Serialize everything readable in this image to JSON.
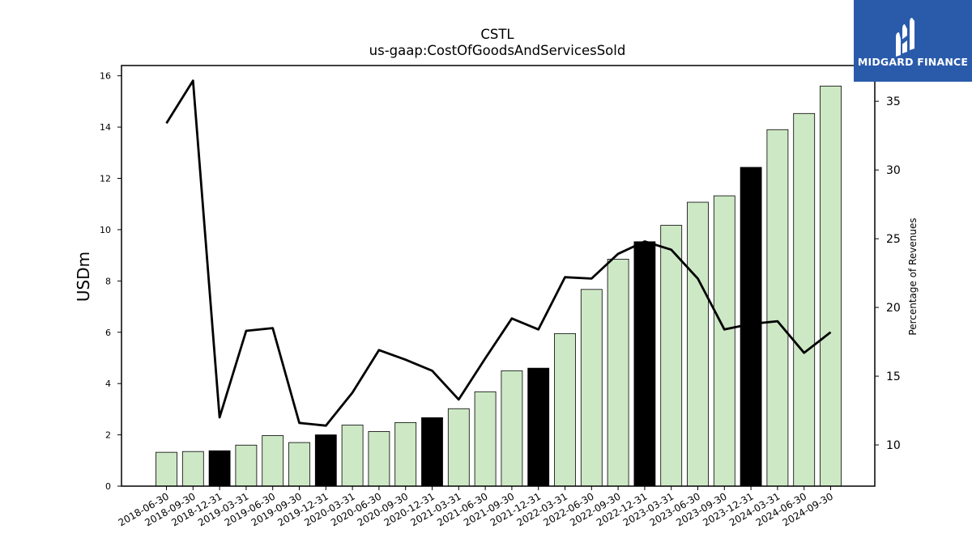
{
  "chart_data": {
    "type": "bar",
    "title": "CSTL",
    "subtitle": "us-gaap:CostOfGoodsAndServicesSold",
    "ylabel": "USDm",
    "y2label": "Percentage of Revenues",
    "ylim": [
      0,
      16.4
    ],
    "y2lim": [
      7,
      37.6
    ],
    "yticks": [
      0,
      2,
      4,
      6,
      8,
      10,
      12,
      14,
      16
    ],
    "y2ticks": [
      10,
      15,
      20,
      25,
      30,
      35
    ],
    "categories": [
      "2018-06-30",
      "2018-09-30",
      "2018-12-31",
      "2019-03-31",
      "2019-06-30",
      "2019-09-30",
      "2019-12-31",
      "2020-03-31",
      "2020-06-30",
      "2020-09-30",
      "2020-12-31",
      "2021-03-31",
      "2021-06-30",
      "2021-09-30",
      "2021-12-31",
      "2022-03-31",
      "2022-06-30",
      "2022-09-30",
      "2022-12-31",
      "2023-03-31",
      "2023-06-30",
      "2023-09-30",
      "2023-12-31",
      "2024-03-31",
      "2024-06-30",
      "2024-09-30"
    ],
    "series": [
      {
        "type": "bar",
        "values": [
          1.32,
          1.35,
          1.38,
          1.6,
          1.97,
          1.7,
          2.0,
          2.38,
          2.13,
          2.48,
          2.67,
          3.02,
          3.68,
          4.5,
          4.6,
          5.95,
          7.67,
          8.85,
          9.53,
          10.17,
          11.07,
          11.32,
          12.43,
          13.9,
          14.53,
          15.6
        ],
        "highlight": [
          false,
          false,
          true,
          false,
          false,
          false,
          true,
          false,
          false,
          false,
          true,
          false,
          false,
          false,
          true,
          false,
          false,
          false,
          true,
          false,
          false,
          false,
          true,
          false,
          false,
          false
        ]
      },
      {
        "type": "line",
        "axis": "right",
        "values": [
          33.4,
          36.5,
          12.0,
          18.3,
          18.5,
          11.6,
          11.4,
          13.8,
          16.9,
          16.2,
          15.4,
          13.3,
          16.3,
          19.2,
          18.4,
          22.2,
          22.1,
          23.9,
          24.8,
          24.2,
          22.1,
          18.4,
          18.8,
          19.0,
          16.7,
          18.2
        ]
      }
    ],
    "colors": {
      "bar": "#cde8c5",
      "bar_highlight": "#000000",
      "bar_edge": "#000000",
      "line": "#000000"
    },
    "grid": false
  },
  "logo": {
    "text": "MIDGARD FINANCE",
    "bg": "#2a5bab"
  }
}
